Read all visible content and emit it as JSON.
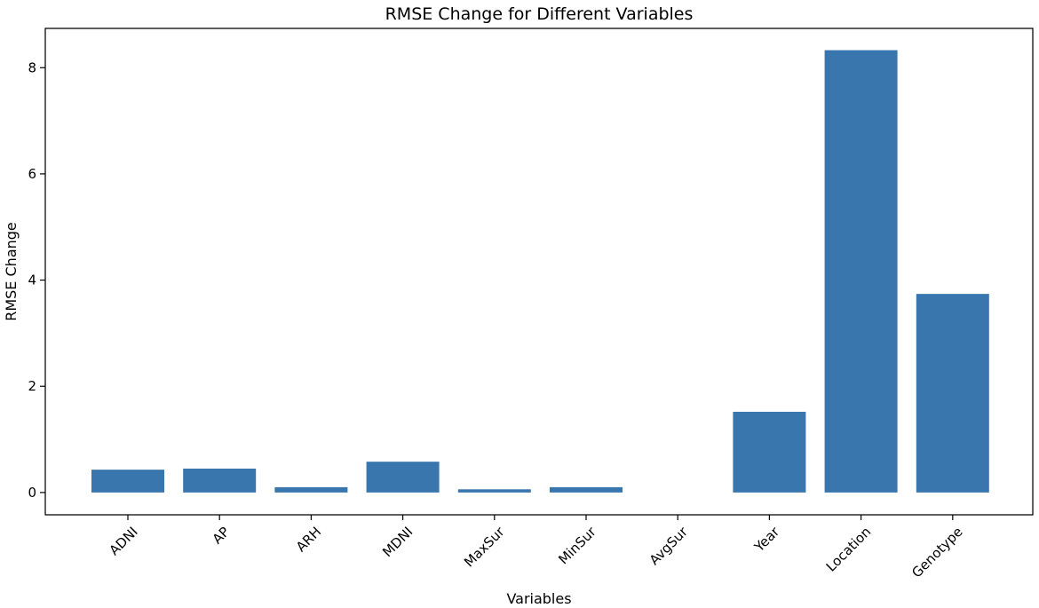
{
  "chart_data": {
    "type": "bar",
    "title": "RMSE Change for Different Variables",
    "xlabel": "Variables",
    "ylabel": "RMSE Change",
    "categories": [
      "ADNI",
      "AP",
      "ARH",
      "MDNI",
      "MaxSur",
      "MinSur",
      "AvgSur",
      "Year",
      "Location",
      "Genotype"
    ],
    "values": [
      0.43,
      0.45,
      0.1,
      0.58,
      0.06,
      0.1,
      0.0,
      1.52,
      8.33,
      3.74
    ],
    "ylim": [
      -0.42,
      8.74
    ],
    "yticks": [
      0,
      2,
      4,
      6,
      8
    ],
    "bar_color": "#3a76ae",
    "grid": false,
    "legend": "none"
  }
}
